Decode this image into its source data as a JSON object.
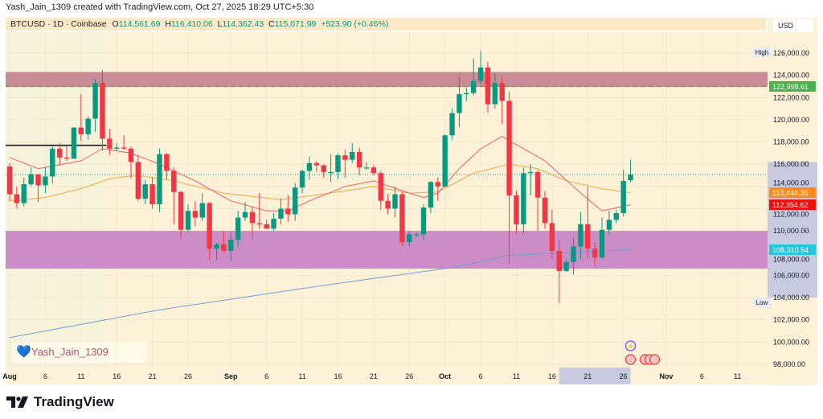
{
  "header": {
    "title": "Yash_Jain_1309 created with TradingView.com, Oct 27, 2025 18:29 UTC+5:30",
    "symbol": "BTCUSD · 1D · Coinbase",
    "open_label": "O",
    "open": "114,561.69",
    "high_label": "H",
    "high": "116,410.06",
    "low_label": "L",
    "low": "114,362.43",
    "close_label": "C",
    "close": "115,071.99",
    "change": "+523.90 (+0.46%)"
  },
  "currency": "USD",
  "watermark": {
    "icon": "heart-icon",
    "text": "Yash_Jain_1309"
  },
  "branding": "TradingView",
  "colors": {
    "up": "#089981",
    "down": "#f23645",
    "ema_fast": "#f0606a",
    "ema_slow": "#f5a742",
    "ma_long": "#6fa0d8",
    "resistance_zone": "#c3818f",
    "support_zone": "#cc8cc6",
    "background": "#fdf1d8"
  },
  "chart_data": {
    "type": "candlestick",
    "ylim": [
      97000,
      127500
    ],
    "y_ticks": [
      126000,
      124000,
      122000,
      120000,
      118000,
      116000,
      114000,
      112000,
      110000,
      108000,
      106000,
      104000,
      102000,
      100000,
      98000
    ],
    "y_tick_labels": [
      "126,000.00",
      "124,000.00",
      "122,000.00",
      "120,000.00",
      "118,000.00",
      "116,000.00",
      "114,000.00",
      "112,000.00",
      "110,000.00",
      "108,000.00",
      "106,000.00",
      "104,000.00",
      "102,000.00",
      "100,000.00",
      "98,000.00"
    ],
    "x_ticks": [
      [
        "Aug",
        "2025-08-01"
      ],
      [
        "6",
        "2025-08-06"
      ],
      [
        "11",
        "2025-08-11"
      ],
      [
        "16",
        "2025-08-16"
      ],
      [
        "21",
        "2025-08-21"
      ],
      [
        "26",
        "2025-08-26"
      ],
      [
        "Sep",
        "2025-09-01"
      ],
      [
        "6",
        "2025-09-06"
      ],
      [
        "11",
        "2025-09-11"
      ],
      [
        "16",
        "2025-09-16"
      ],
      [
        "21",
        "2025-09-21"
      ],
      [
        "26",
        "2025-09-26"
      ],
      [
        "Oct",
        "2025-10-01"
      ],
      [
        "6",
        "2025-10-06"
      ],
      [
        "11",
        "2025-10-11"
      ],
      [
        "16",
        "2025-10-16"
      ],
      [
        "21",
        "2025-10-21"
      ],
      [
        "26",
        "2025-10-26"
      ],
      [
        "Nov",
        "2025-11-01"
      ],
      [
        "6",
        "2025-11-06"
      ],
      [
        "11",
        "2025-11-11"
      ]
    ],
    "candles_columns": [
      "date",
      "open",
      "high",
      "low",
      "close"
    ],
    "candles": [
      [
        "2025-08-01",
        115800,
        116100,
        112700,
        113300
      ],
      [
        "2025-08-02",
        113300,
        114000,
        112000,
        112500
      ],
      [
        "2025-08-03",
        112500,
        114800,
        112200,
        114200
      ],
      [
        "2025-08-04",
        114200,
        115700,
        114000,
        115100
      ],
      [
        "2025-08-05",
        115100,
        115100,
        112600,
        114100
      ],
      [
        "2025-08-06",
        114100,
        115700,
        113400,
        114900
      ],
      [
        "2025-08-07",
        114900,
        117600,
        114300,
        117400
      ],
      [
        "2025-08-08",
        117400,
        117900,
        115900,
        116600
      ],
      [
        "2025-08-09",
        116600,
        117600,
        116300,
        116500
      ],
      [
        "2025-08-10",
        116500,
        119300,
        116500,
        119300
      ],
      [
        "2025-08-11",
        119300,
        122300,
        118100,
        118700
      ],
      [
        "2025-08-12",
        118700,
        120300,
        118200,
        120100
      ],
      [
        "2025-08-13",
        120100,
        123700,
        118900,
        123300
      ],
      [
        "2025-08-14",
        123300,
        124500,
        117200,
        118300
      ],
      [
        "2025-08-15",
        118300,
        119200,
        116800,
        117400
      ],
      [
        "2025-08-16",
        117400,
        117900,
        117200,
        117500
      ],
      [
        "2025-08-17",
        117500,
        118600,
        117300,
        117400
      ],
      [
        "2025-08-18",
        117400,
        117600,
        114700,
        116200
      ],
      [
        "2025-08-19",
        116200,
        116800,
        112700,
        112900
      ],
      [
        "2025-08-20",
        112900,
        114600,
        112400,
        114200
      ],
      [
        "2025-08-21",
        114200,
        114800,
        112000,
        112400
      ],
      [
        "2025-08-22",
        112400,
        117400,
        111700,
        116900
      ],
      [
        "2025-08-23",
        116900,
        117000,
        114600,
        115400
      ],
      [
        "2025-08-24",
        115400,
        115700,
        110600,
        113500
      ],
      [
        "2025-08-25",
        113500,
        113600,
        109300,
        110100
      ],
      [
        "2025-08-26",
        110100,
        112400,
        109900,
        111800
      ],
      [
        "2025-08-27",
        111800,
        112700,
        110400,
        111200
      ],
      [
        "2025-08-28",
        111200,
        113400,
        110900,
        112500
      ],
      [
        "2025-08-29",
        112500,
        112600,
        107400,
        108400
      ],
      [
        "2025-08-30",
        108400,
        108900,
        107400,
        108800
      ],
      [
        "2025-08-31",
        108800,
        110000,
        108000,
        108200
      ],
      [
        "2025-09-01",
        108200,
        109900,
        107300,
        109200
      ],
      [
        "2025-09-02",
        109200,
        111800,
        108600,
        111200
      ],
      [
        "2025-09-03",
        111200,
        112600,
        110900,
        111700
      ],
      [
        "2025-09-04",
        111700,
        112200,
        109300,
        110700
      ],
      [
        "2025-09-05",
        110700,
        113400,
        110200,
        110600
      ],
      [
        "2025-09-06",
        110600,
        111000,
        110200,
        110200
      ],
      [
        "2025-09-07",
        110200,
        111600,
        110000,
        111100
      ],
      [
        "2025-09-08",
        111100,
        112900,
        110600,
        112000
      ],
      [
        "2025-09-09",
        112000,
        113200,
        110800,
        111500
      ],
      [
        "2025-09-10",
        111500,
        114300,
        110900,
        113900
      ],
      [
        "2025-09-11",
        113900,
        115500,
        113400,
        115400
      ],
      [
        "2025-09-12",
        115400,
        116700,
        114600,
        116100
      ],
      [
        "2025-09-13",
        116100,
        116300,
        115300,
        115900
      ],
      [
        "2025-09-14",
        115900,
        116000,
        114800,
        115300
      ],
      [
        "2025-09-15",
        115300,
        116900,
        114400,
        115300
      ],
      [
        "2025-09-16",
        115300,
        117000,
        114700,
        116800
      ],
      [
        "2025-09-17",
        116800,
        117300,
        114800,
        116400
      ],
      [
        "2025-09-18",
        116400,
        117900,
        116100,
        117100
      ],
      [
        "2025-09-19",
        117100,
        117500,
        115000,
        115700
      ],
      [
        "2025-09-20",
        115700,
        116200,
        115500,
        115700
      ],
      [
        "2025-09-21",
        115700,
        115900,
        115000,
        115200
      ],
      [
        "2025-09-22",
        115200,
        115400,
        111900,
        112700
      ],
      [
        "2025-09-23",
        112700,
        113300,
        111500,
        112000
      ],
      [
        "2025-09-24",
        112000,
        114000,
        111200,
        113300
      ],
      [
        "2025-09-25",
        113300,
        113500,
        108600,
        109000
      ],
      [
        "2025-09-26",
        109000,
        110000,
        108600,
        109700
      ],
      [
        "2025-09-27",
        109700,
        109900,
        109400,
        109700
      ],
      [
        "2025-09-28",
        109700,
        112400,
        109100,
        112100
      ],
      [
        "2025-09-29",
        112100,
        114500,
        111600,
        114400
      ],
      [
        "2025-09-30",
        114400,
        114800,
        112700,
        114000
      ],
      [
        "2025-10-01",
        114000,
        118700,
        113900,
        118600
      ],
      [
        "2025-10-02",
        118600,
        121000,
        118200,
        120600
      ],
      [
        "2025-10-03",
        120600,
        123900,
        119300,
        122300
      ],
      [
        "2025-10-04",
        122300,
        122900,
        121700,
        122400
      ],
      [
        "2025-10-05",
        122400,
        125500,
        122200,
        123500
      ],
      [
        "2025-10-06",
        123500,
        126200,
        123200,
        124700
      ],
      [
        "2025-10-07",
        124700,
        125200,
        120600,
        121400
      ],
      [
        "2025-10-08",
        121400,
        124200,
        121000,
        123300
      ],
      [
        "2025-10-09",
        123300,
        123800,
        119600,
        121700
      ],
      [
        "2025-10-10",
        121700,
        122500,
        107000,
        113200
      ],
      [
        "2025-10-11",
        113200,
        113600,
        109700,
        110600
      ],
      [
        "2025-10-12",
        110600,
        115700,
        109800,
        115200
      ],
      [
        "2025-10-13",
        115200,
        116000,
        113200,
        115300
      ],
      [
        "2025-10-14",
        115300,
        115500,
        110000,
        113000
      ],
      [
        "2025-10-15",
        113000,
        113600,
        110200,
        110700
      ],
      [
        "2025-10-16",
        110700,
        111900,
        107500,
        108200
      ],
      [
        "2025-10-17",
        108200,
        109200,
        103500,
        106400
      ],
      [
        "2025-10-18",
        106400,
        107500,
        106300,
        107200
      ],
      [
        "2025-10-19",
        107200,
        109400,
        106100,
        108600
      ],
      [
        "2025-10-20",
        108600,
        111700,
        107500,
        110600
      ],
      [
        "2025-10-21",
        110600,
        114000,
        107500,
        108400
      ],
      [
        "2025-10-22",
        108400,
        109000,
        106800,
        107600
      ],
      [
        "2025-10-23",
        107600,
        111200,
        107500,
        110100
      ],
      [
        "2025-10-24",
        110100,
        111800,
        109700,
        111000
      ],
      [
        "2025-10-25",
        111000,
        111900,
        110700,
        111600
      ],
      [
        "2025-10-26",
        111600,
        115500,
        111300,
        114500
      ],
      [
        "2025-10-27",
        114561.69,
        116410.06,
        114362.43,
        115071.99
      ]
    ],
    "overlays": {
      "ema_fast": [
        [
          "2025-08-01",
          116600
        ],
        [
          "2025-08-05",
          115600
        ],
        [
          "2025-08-11",
          116300
        ],
        [
          "2025-08-14",
          117400
        ],
        [
          "2025-08-18",
          117000
        ],
        [
          "2025-08-22",
          116000
        ],
        [
          "2025-08-27",
          114500
        ],
        [
          "2025-09-01",
          112700
        ],
        [
          "2025-09-06",
          111800
        ],
        [
          "2025-09-09",
          111800
        ],
        [
          "2025-09-12",
          112700
        ],
        [
          "2025-09-17",
          114000
        ],
        [
          "2025-09-21",
          114500
        ],
        [
          "2025-09-26",
          113400
        ],
        [
          "2025-09-28",
          113000
        ],
        [
          "2025-09-30",
          113400
        ],
        [
          "2025-10-03",
          115600
        ],
        [
          "2025-10-06",
          117400
        ],
        [
          "2025-10-09",
          118500
        ],
        [
          "2025-10-12",
          117400
        ],
        [
          "2025-10-15",
          116300
        ],
        [
          "2025-10-20",
          113400
        ],
        [
          "2025-10-23",
          111800
        ],
        [
          "2025-10-27",
          112354.62
        ]
      ],
      "ema_slow": [
        [
          "2025-08-01",
          112700
        ],
        [
          "2025-08-06",
          113000
        ],
        [
          "2025-08-11",
          113800
        ],
        [
          "2025-08-15",
          114700
        ],
        [
          "2025-08-19",
          115000
        ],
        [
          "2025-08-24",
          114500
        ],
        [
          "2025-08-31",
          113400
        ],
        [
          "2025-09-08",
          112800
        ],
        [
          "2025-09-16",
          113500
        ],
        [
          "2025-09-21",
          114000
        ],
        [
          "2025-09-26",
          113400
        ],
        [
          "2025-09-30",
          113500
        ],
        [
          "2025-10-05",
          115200
        ],
        [
          "2025-10-10",
          116000
        ],
        [
          "2025-10-14",
          115600
        ],
        [
          "2025-10-18",
          114500
        ],
        [
          "2025-10-23",
          113800
        ],
        [
          "2025-10-27",
          113444.36
        ]
      ],
      "ma_long": [
        [
          "2025-08-01",
          100400
        ],
        [
          "2025-08-22",
          102900
        ],
        [
          "2025-09-14",
          105100
        ],
        [
          "2025-10-02",
          106700
        ],
        [
          "2025-10-10",
          107800
        ],
        [
          "2025-10-27",
          108310.54
        ]
      ],
      "resistance_zone": [
        122950,
        124300
      ],
      "support_zone": [
        106600,
        110000
      ],
      "horizontal_line": {
        "price": 117700,
        "from": "2025-07-31",
        "to": "2025-08-14"
      },
      "last_price_line": 115071.99,
      "dashed_level": 122998.61
    },
    "price_labels": [
      {
        "text": "122,998.61",
        "value": 122998.61,
        "color": "#4caf50"
      },
      {
        "text": "113,444.36",
        "value": 113444.36,
        "color": "#ff8c1a"
      },
      {
        "text": "112,354.62",
        "value": 112354.62,
        "color": "#f20d0d"
      },
      {
        "text": "108,310.54",
        "value": 108310.54,
        "color": "#26c6da"
      }
    ],
    "high_marker": {
      "text": "High",
      "value": 126000
    },
    "low_marker": {
      "text": "Low",
      "value": 103500
    },
    "date_range_highlight": [
      "2025-10-17",
      "2025-10-27"
    ],
    "price_range_highlight": [
      104000,
      116200
    ]
  }
}
